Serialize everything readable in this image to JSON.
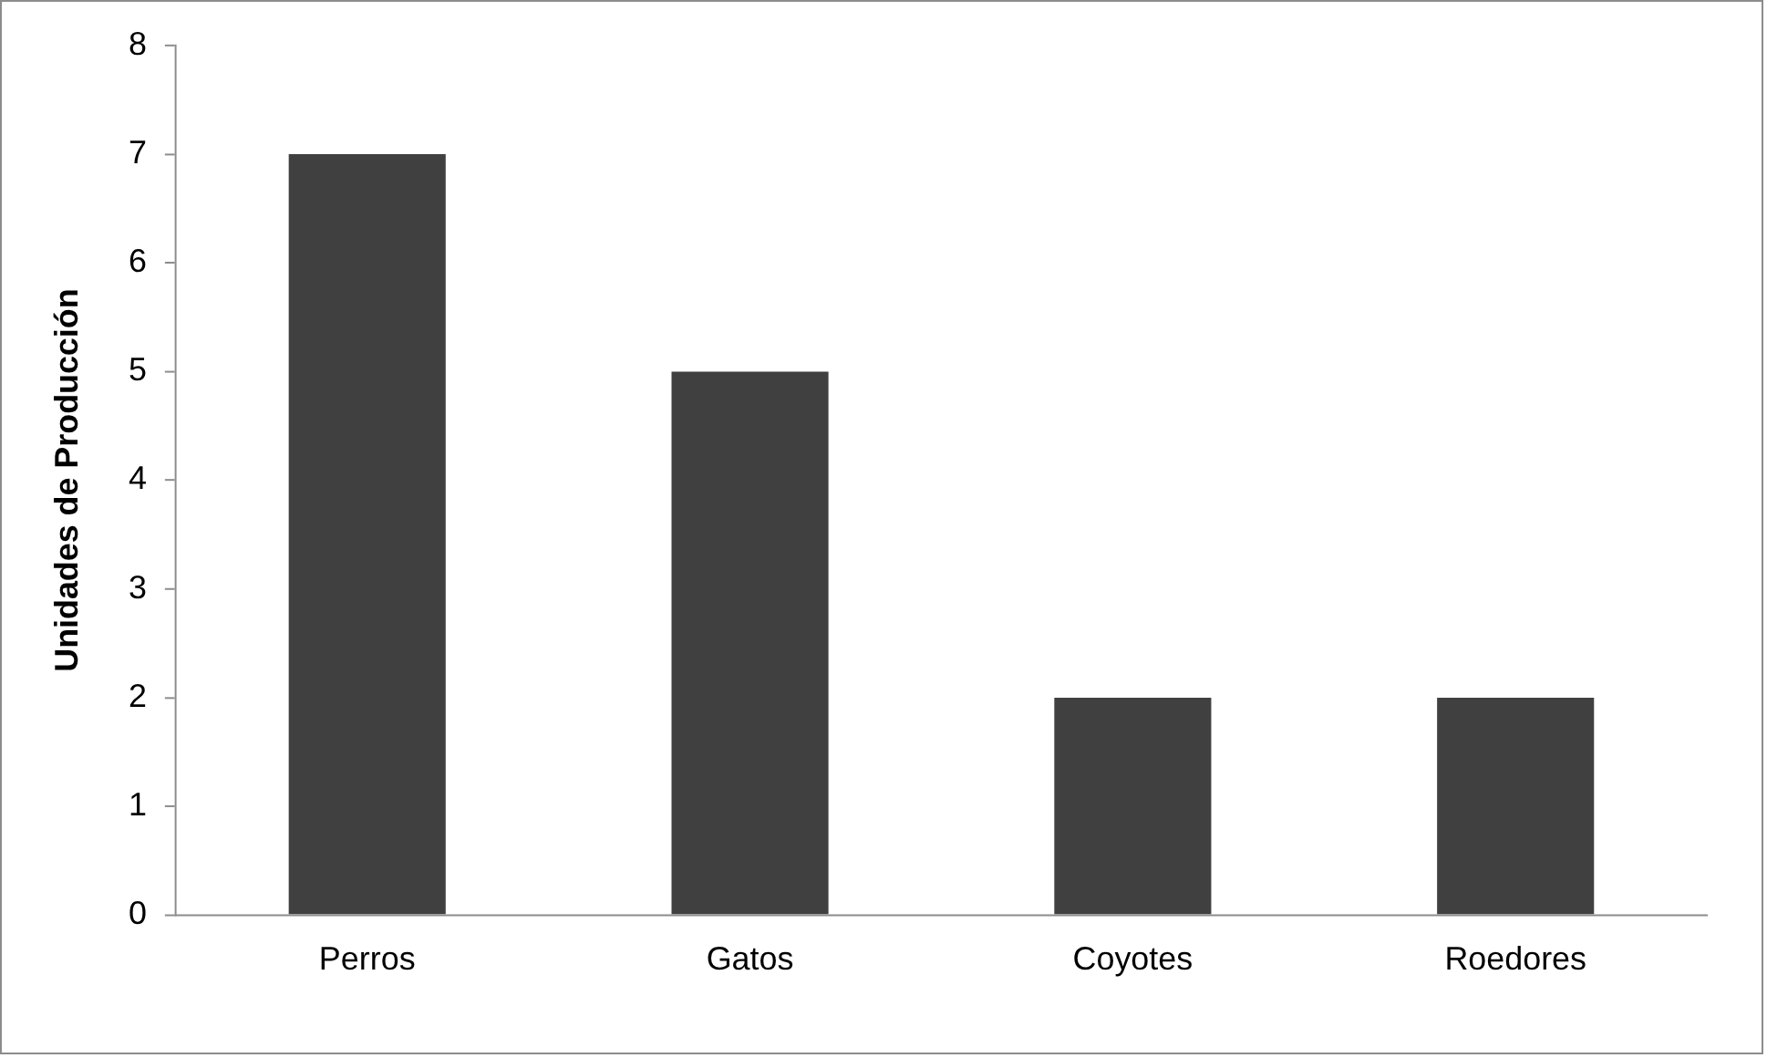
{
  "chart_data": {
    "type": "bar",
    "ylabel": "Unidades de Producción",
    "categories": [
      "Perros",
      "Gatos",
      "Coyotes",
      "Roedores"
    ],
    "values": [
      7,
      5,
      2,
      2
    ],
    "color": "#404040",
    "ylim": [
      0,
      8
    ],
    "yticks": [
      0,
      1,
      2,
      3,
      4,
      5,
      6,
      7,
      8
    ],
    "grid": false,
    "legend": false
  }
}
